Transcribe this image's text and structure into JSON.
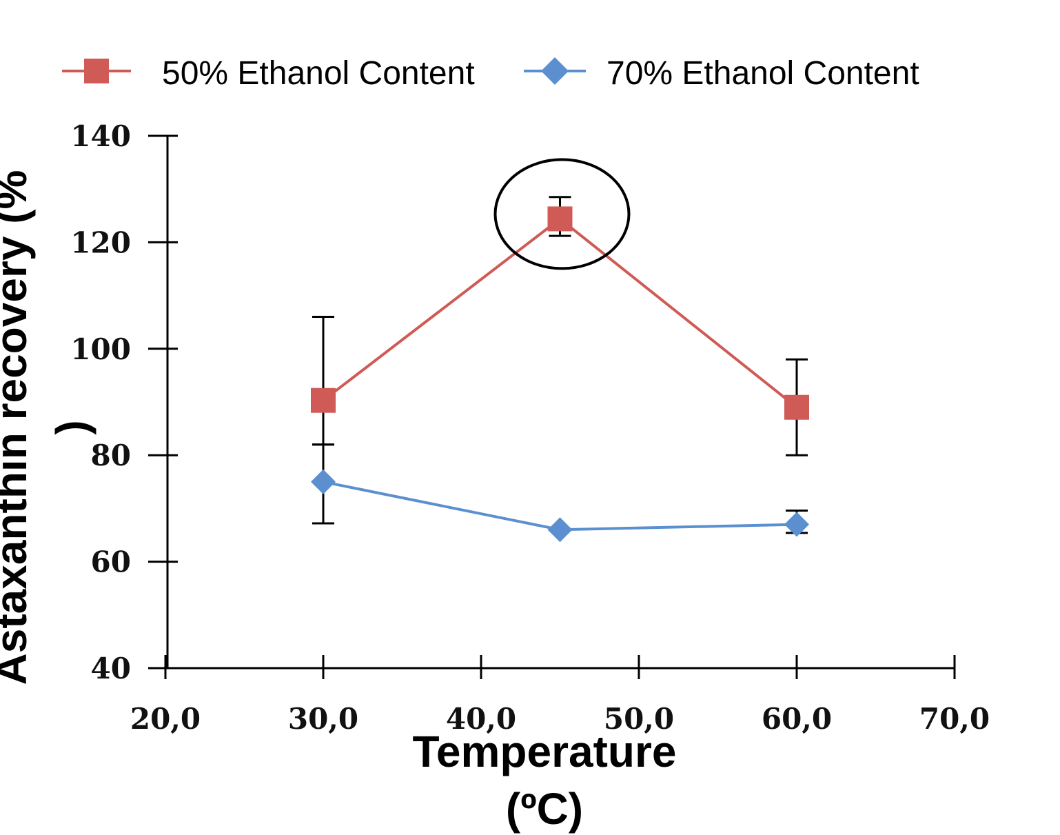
{
  "chart_data": {
    "type": "line",
    "xlabel": [
      "Temperature",
      "(ºC)"
    ],
    "ylabel": [
      "Astaxanthin recovery (%",
      ")"
    ],
    "xlim": [
      20,
      70
    ],
    "ylim": [
      40,
      140
    ],
    "x_ticks": [
      20,
      30,
      40,
      50,
      60,
      70
    ],
    "x_tick_labels": [
      "20,0",
      "30,0",
      "40,0",
      "50,0",
      "60,0",
      "70,0"
    ],
    "y_ticks": [
      40,
      60,
      80,
      100,
      120,
      140
    ],
    "y_tick_labels": [
      "40",
      "60",
      "80",
      "100",
      "120",
      "140"
    ],
    "grid": false,
    "legend_position": "top",
    "series": [
      {
        "name": "50% Ethanol Content",
        "color": "#d05a55",
        "marker": "square",
        "x": [
          30,
          45,
          60
        ],
        "y": [
          90.3,
          124.4,
          89.0
        ],
        "err_low": [
          8.3,
          3.2,
          9.0
        ],
        "err_high": [
          15.7,
          4.1,
          9.0
        ]
      },
      {
        "name": "70% Ethanol Content",
        "color": "#5b8fcf",
        "marker": "diamond",
        "x": [
          30,
          45,
          60
        ],
        "y": [
          75.0,
          66.0,
          67.0
        ],
        "err_low": [
          7.8,
          0,
          1.6
        ],
        "err_high": [
          7.0,
          0,
          2.6
        ]
      }
    ],
    "annotations": [
      {
        "type": "ellipse",
        "x": 45,
        "y": 124.4,
        "note": "highlight"
      }
    ]
  }
}
